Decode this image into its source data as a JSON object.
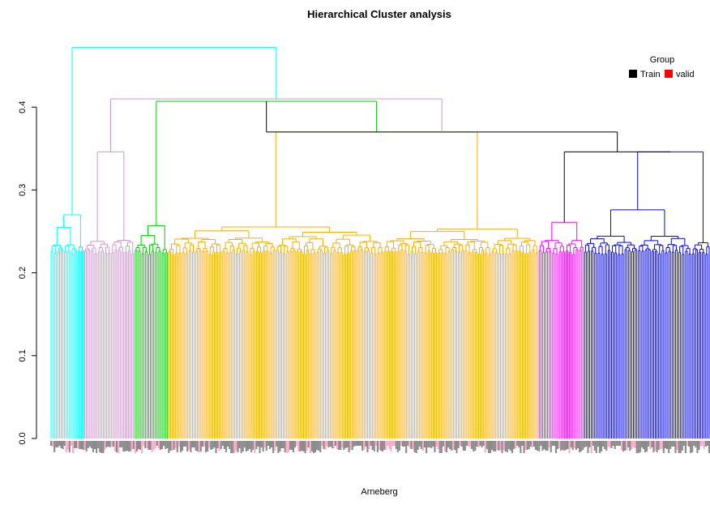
{
  "chart_data": {
    "type": "dendrogram",
    "title": "Hierarchical Cluster analysis",
    "xlabel": "Arneberg",
    "ylabel": "",
    "ylim": [
      0,
      0.47
    ],
    "yticks": [
      0.0,
      0.1,
      0.2,
      0.3,
      0.4
    ],
    "ytick_labels": [
      "0.0",
      "0.1",
      "0.2",
      "0.3",
      "0.4"
    ],
    "legend": {
      "title": "Group",
      "placement": "top-right",
      "entries": [
        {
          "label": "Train",
          "color": "#000000"
        },
        {
          "label": "valid",
          "color": "#ff0000"
        }
      ]
    },
    "clusters": [
      {
        "name": "cyan",
        "color": "#00ffff",
        "leaves": 20,
        "root_height": 0.27,
        "sub_heights": [
          0.255,
          0.256
        ]
      },
      {
        "name": "plum",
        "color": "#cc99cc",
        "leaves": 30,
        "root_height": 0.346,
        "sub_heights": [
          0.277,
          0.296
        ]
      },
      {
        "name": "green",
        "color": "#00cc00",
        "leaves": 20,
        "root_height": 0.257,
        "sub_heights": [
          0.245,
          0.24
        ]
      },
      {
        "name": "orange",
        "color": "#ffaa00",
        "leaves": 220,
        "root_height": 0.37,
        "sub_heights": [
          0.342,
          0.336
        ]
      },
      {
        "name": "magenta",
        "color": "#ff00ff",
        "leaves": 27,
        "root_height": 0.261,
        "sub_heights": [
          0.243,
          0.24
        ]
      },
      {
        "name": "blue",
        "color": "#0000ff",
        "leaves": 75,
        "root_height": 0.346,
        "sub_heights": [
          0.276,
          0.304
        ]
      }
    ],
    "merges": [
      {
        "left": "green",
        "right": "orange",
        "height": 0.407,
        "color": "#00cc00"
      },
      {
        "left": "orange-green",
        "right": "magenta-blue",
        "height": 0.37,
        "color": "#000000"
      },
      {
        "left": "magenta",
        "right": "blue",
        "height": 0.346,
        "color": "#000000"
      },
      {
        "left": "plum",
        "right": "rest",
        "height": 0.41,
        "color": "#cc99cc"
      },
      {
        "left": "cyan",
        "right": "rest",
        "height": 0.472,
        "color": "#00ffff"
      }
    ],
    "label_colors": {
      "train": "#8a8a8a",
      "valid": "#ffaacc"
    }
  }
}
